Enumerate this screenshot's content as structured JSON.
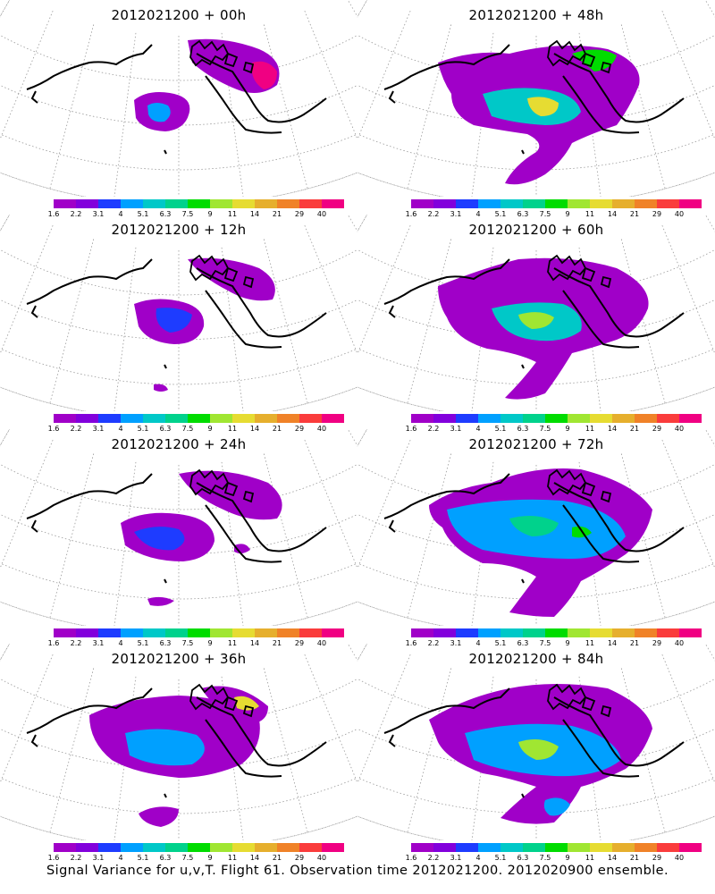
{
  "panels": [
    {
      "title": "2012021200 + 00h"
    },
    {
      "title": "2012021200 + 48h"
    },
    {
      "title": "2012021200 + 12h"
    },
    {
      "title": "2012021200 + 60h"
    },
    {
      "title": "2012021200 + 24h"
    },
    {
      "title": "2012021200 + 72h"
    },
    {
      "title": "2012021200 + 36h"
    },
    {
      "title": "2012021200 + 84h"
    }
  ],
  "colorbar": {
    "colors": [
      "#a000c8",
      "#8200dc",
      "#1e3cff",
      "#00a0ff",
      "#00c8c8",
      "#00d28c",
      "#00dc00",
      "#a0e632",
      "#e6dc32",
      "#e6af2d",
      "#f08228",
      "#fa3c3c",
      "#f00082"
    ],
    "labels": [
      "1.6",
      "2.2",
      "3.1",
      "4",
      "5.1",
      "6.3",
      "7.5",
      "9",
      "11",
      "14",
      "21",
      "29",
      "40"
    ]
  },
  "caption": "Signal Variance for u,v,T. Flight 61. Observation time 2012021200. 2012020900 ensemble."
}
